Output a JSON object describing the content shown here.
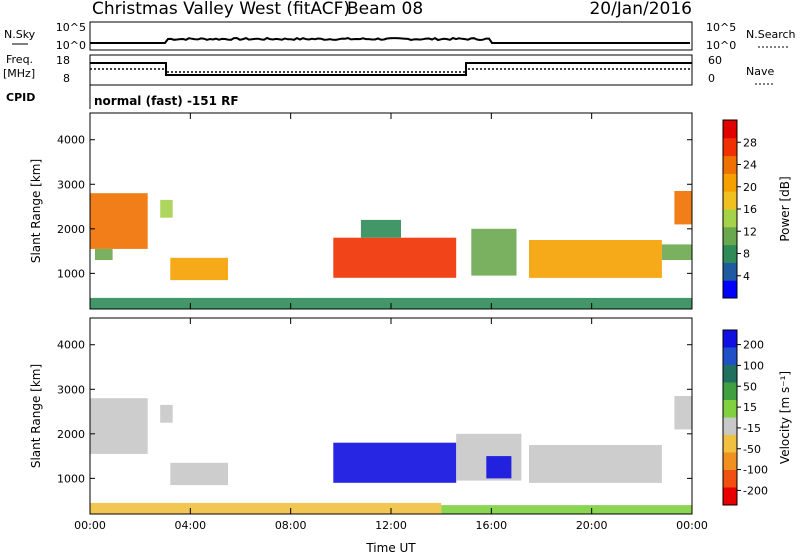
{
  "header": {
    "title": "Christmas Valley West (fitACF)",
    "beam": "Beam 08",
    "date": "20/Jan/2016"
  },
  "strip_labels": {
    "nsky": "N.Sky",
    "nsearch": "N.Search",
    "freq_line1": "Freq.",
    "freq_line2": "[MHz]",
    "nave": "Nave",
    "cpid": "CPID",
    "cpid_value": "normal (fast) -151 RF",
    "nsky_ticks": [
      "10^5",
      "10^0"
    ],
    "nsearch_ticks": [
      "10^5",
      "10^0"
    ],
    "freq_ticks": [
      "18",
      "8"
    ],
    "nave_ticks": [
      "60",
      "0"
    ]
  },
  "xlabel": "Time UT",
  "colors": {
    "power_scale": [
      "#0000ff",
      "#1e5aa0",
      "#2e8b57",
      "#6aa84f",
      "#a6d24a",
      "#f0c020",
      "#f5a000",
      "#f07000",
      "#f03000",
      "#e00000"
    ],
    "velocity_scale": [
      "#1010e0",
      "#2050c8",
      "#207060",
      "#40a040",
      "#80d040",
      "#c8c8c8",
      "#f0c040",
      "#f09020",
      "#f05010",
      "#e80000"
    ]
  },
  "chart_data": [
    {
      "type": "heatmap",
      "panel": "power",
      "ylabel": "Slant Range [km]",
      "colorbar_label": "Power [dB]",
      "x_ticks": [
        "00:00",
        "04:00",
        "08:00",
        "12:00",
        "16:00",
        "20:00",
        "00:00"
      ],
      "xlim_hours": [
        0,
        24
      ],
      "y_ticks": [
        1000,
        2000,
        3000,
        4000
      ],
      "ylim": [
        200,
        4600
      ],
      "colorbar_ticks": [
        4,
        8,
        12,
        16,
        20,
        24,
        28
      ],
      "colorbar_range": [
        0,
        32
      ],
      "echo_regions": [
        {
          "t_start": 0.0,
          "t_end": 2.3,
          "range_start": 1550,
          "range_end": 2800,
          "value": 24
        },
        {
          "t_start": 0.2,
          "t_end": 0.9,
          "range_start": 1300,
          "range_end": 1550,
          "value": 12
        },
        {
          "t_start": 2.8,
          "t_end": 3.3,
          "range_start": 2250,
          "range_end": 2650,
          "value": 14
        },
        {
          "t_start": 3.2,
          "t_end": 5.5,
          "range_start": 850,
          "range_end": 1350,
          "value": 22
        },
        {
          "t_start": 9.7,
          "t_end": 14.6,
          "range_start": 900,
          "range_end": 1800,
          "value": 26
        },
        {
          "t_start": 10.8,
          "t_end": 12.4,
          "range_start": 1800,
          "range_end": 2200,
          "value": 9
        },
        {
          "t_start": 15.2,
          "t_end": 17.0,
          "range_start": 950,
          "range_end": 2000,
          "value": 10
        },
        {
          "t_start": 17.5,
          "t_end": 22.8,
          "range_start": 900,
          "range_end": 1750,
          "value": 20
        },
        {
          "t_start": 22.8,
          "t_end": 24.0,
          "range_start": 1300,
          "range_end": 1650,
          "value": 12
        },
        {
          "t_start": 23.3,
          "t_end": 24.0,
          "range_start": 2100,
          "range_end": 2850,
          "value": 24
        },
        {
          "t_start": 0.0,
          "t_end": 24.0,
          "range_start": 200,
          "range_end": 450,
          "value": 8
        }
      ]
    },
    {
      "type": "heatmap",
      "panel": "velocity",
      "ylabel": "Slant Range [km]",
      "colorbar_label": "Velocity [m s⁻¹]",
      "x_ticks": [
        "00:00",
        "04:00",
        "08:00",
        "12:00",
        "16:00",
        "20:00",
        "00:00"
      ],
      "xlim_hours": [
        0,
        24
      ],
      "y_ticks": [
        1000,
        2000,
        3000,
        4000
      ],
      "ylim": [
        200,
        4600
      ],
      "colorbar_ticks": [
        200,
        100,
        50,
        15,
        -15,
        -50,
        -100,
        -200
      ],
      "echo_regions": [
        {
          "t_start": 0.0,
          "t_end": 2.3,
          "range_start": 1550,
          "range_end": 2800,
          "value": 0
        },
        {
          "t_start": 2.8,
          "t_end": 3.3,
          "range_start": 2250,
          "range_end": 2650,
          "value": 0
        },
        {
          "t_start": 3.2,
          "t_end": 5.5,
          "range_start": 850,
          "range_end": 1350,
          "value": 0
        },
        {
          "t_start": 9.7,
          "t_end": 14.6,
          "range_start": 900,
          "range_end": 1800,
          "value": 180
        },
        {
          "t_start": 14.6,
          "t_end": 17.2,
          "range_start": 950,
          "range_end": 2000,
          "value": 0
        },
        {
          "t_start": 15.8,
          "t_end": 16.8,
          "range_start": 1000,
          "range_end": 1500,
          "value": 180
        },
        {
          "t_start": 17.5,
          "t_end": 22.8,
          "range_start": 900,
          "range_end": 1750,
          "value": 0
        },
        {
          "t_start": 23.3,
          "t_end": 24.0,
          "range_start": 2100,
          "range_end": 2850,
          "value": 0
        },
        {
          "t_start": 0.0,
          "t_end": 14.0,
          "range_start": 200,
          "range_end": 450,
          "value": -40
        },
        {
          "t_start": 14.0,
          "t_end": 24.0,
          "range_start": 200,
          "range_end": 400,
          "value": 40
        }
      ]
    }
  ]
}
